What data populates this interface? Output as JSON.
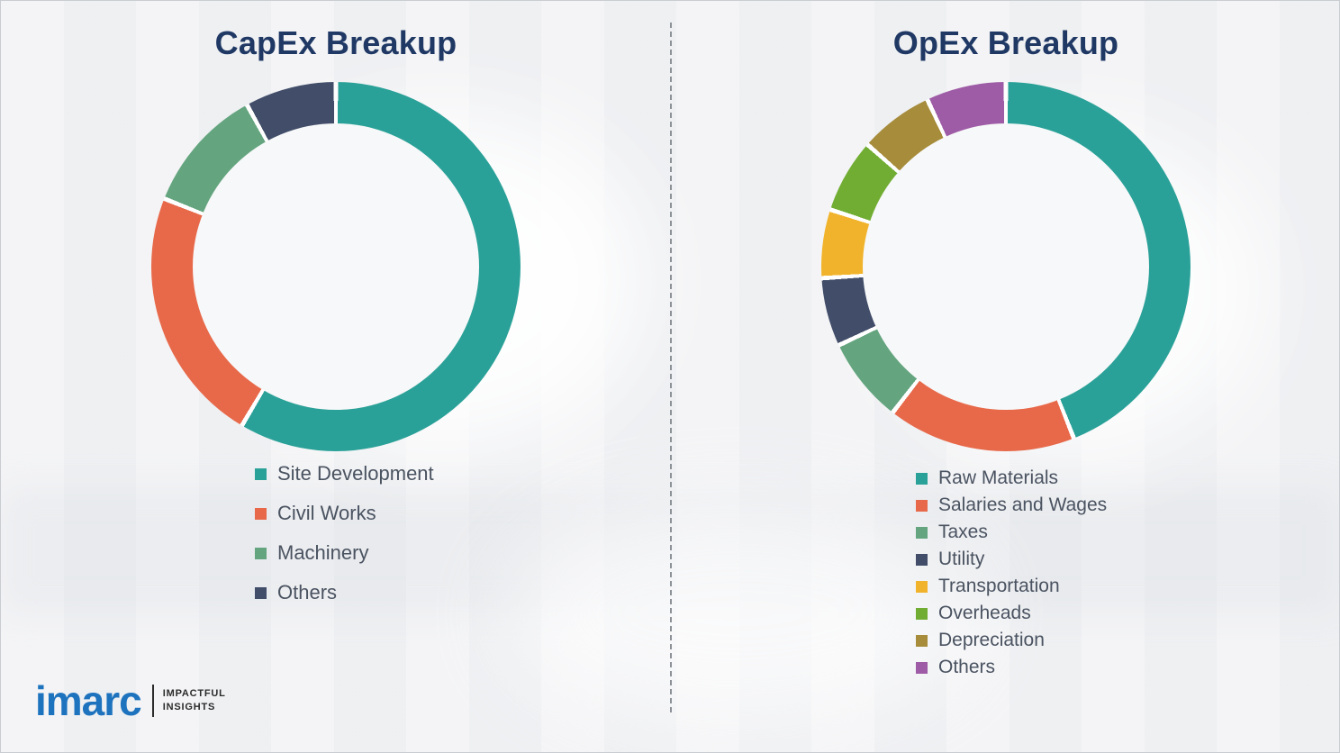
{
  "page": {
    "title_color": "#1F3864",
    "background_color": "#f1f2f4",
    "divider_style": "vertical-dashed"
  },
  "chart_data": [
    {
      "type": "pie",
      "donut": true,
      "title": "CapEx Breakup",
      "legend_position": "bottom-left",
      "start_angle_deg": 0,
      "direction": "clockwise",
      "series": [
        {
          "name": "Site Development",
          "value": 58.5,
          "color": "#2AA198"
        },
        {
          "name": "Civil Works",
          "value": 22.5,
          "color": "#E7694A"
        },
        {
          "name": "Machinery",
          "value": 11,
          "color": "#64A57F"
        },
        {
          "name": "Others",
          "value": 8,
          "color": "#414D69"
        }
      ]
    },
    {
      "type": "pie",
      "donut": true,
      "title": "OpEx Breakup",
      "legend_position": "bottom-left",
      "start_angle_deg": 0,
      "direction": "clockwise",
      "series": [
        {
          "name": "Raw Materials",
          "value": 44,
          "color": "#2AA198"
        },
        {
          "name": "Salaries and Wages",
          "value": 16.5,
          "color": "#E7694A"
        },
        {
          "name": "Taxes",
          "value": 7.5,
          "color": "#64A57F"
        },
        {
          "name": "Utility",
          "value": 6,
          "color": "#414D69"
        },
        {
          "name": "Transportation",
          "value": 6,
          "color": "#F1B32B"
        },
        {
          "name": "Overheads",
          "value": 6.5,
          "color": "#72AD33"
        },
        {
          "name": "Depreciation",
          "value": 6.5,
          "color": "#A68C3B"
        },
        {
          "name": "Others",
          "value": 7,
          "color": "#9E5BA6"
        }
      ]
    }
  ],
  "footer": {
    "logo_text": "imarc",
    "logo_color": "#1E73BE",
    "tagline_line1": "IMPACTFUL",
    "tagline_line2": "INSIGHTS"
  }
}
